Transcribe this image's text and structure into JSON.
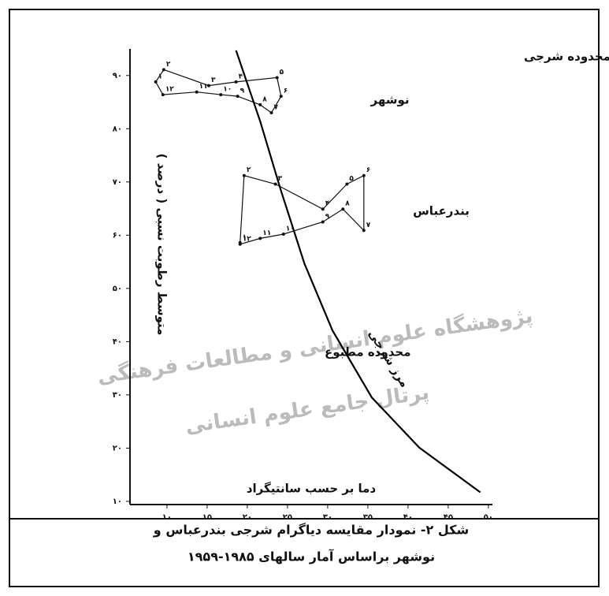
{
  "chart_data": {
    "type": "line",
    "xlim": [
      5.4,
      50.5
    ],
    "ylim": [
      9.4,
      95
    ],
    "xticks": [
      {
        "value": 10,
        "label": "۱۰"
      },
      {
        "value": 15,
        "label": "۱۵"
      },
      {
        "value": 20,
        "label": "۲۰"
      },
      {
        "value": 25,
        "label": "۲۵"
      },
      {
        "value": 30,
        "label": "۳۰"
      },
      {
        "value": 35,
        "label": "۳۵"
      },
      {
        "value": 40,
        "label": "۴۰"
      },
      {
        "value": 45,
        "label": "۴۵"
      },
      {
        "value": 50,
        "label": "۵۰"
      }
    ],
    "yticks": [
      {
        "value": 10,
        "label": "۱۰"
      },
      {
        "value": 20,
        "label": "۲۰"
      },
      {
        "value": 30,
        "label": "۳۰"
      },
      {
        "value": 40,
        "label": "۴۰"
      },
      {
        "value": 50,
        "label": "۵۰"
      },
      {
        "value": 60,
        "label": "۶۰"
      },
      {
        "value": 70,
        "label": "۷۰"
      },
      {
        "value": 80,
        "label": "۸۰"
      },
      {
        "value": 90,
        "label": "۹۰"
      }
    ],
    "x_label": "دما بر حسب سانتیگراد",
    "y_label": "متوسط رطوبت نسبی ( درصد )",
    "annotations": [
      "محدوده شرجی",
      "محدوده مطبوع"
    ],
    "caption": [
      "شکل ۲- نمودار مقایسه دیاگرام شرجی بندرعباس و",
      "نوشهر براساس آمار سالهای ۱۹۸۵-۱۹۵۹"
    ],
    "watermark": [
      "پژوهشگاه علوم انسانی و مطالعات فرهنگی",
      "پرتال جامع علوم انسانی"
    ],
    "series": [
      {
        "name": "نوشهر",
        "color": "#111111",
        "x": [
          8.6,
          9.6,
          15.2,
          18.6,
          23.7,
          24.2,
          23.0,
          21.6,
          18.8,
          16.7,
          13.7,
          9.5
        ],
        "values": [
          88.8,
          91.1,
          88.1,
          88.8,
          89.6,
          86.1,
          83.0,
          84.5,
          86.1,
          86.4,
          86.9,
          86.4
        ],
        "point_labels": [
          "۱",
          "۲",
          "۳",
          "۴",
          "۵",
          "۶",
          "۷",
          "۸",
          "۹",
          "۱۰",
          "۱۱",
          "۱۲"
        ]
      },
      {
        "name": "بندرعباس",
        "color": "#111111",
        "x": [
          19.1,
          19.6,
          23.5,
          29.4,
          32.4,
          34.5,
          34.5,
          31.9,
          29.4,
          24.5,
          21.6,
          19.1
        ],
        "values": [
          58.6,
          71.2,
          69.6,
          64.9,
          69.6,
          71.2,
          60.9,
          64.9,
          62.5,
          60.2,
          59.4,
          58.3
        ],
        "point_labels": [
          "۱",
          "۲",
          "۳",
          "۴",
          "۵",
          "۶",
          "۷",
          "۸",
          "۹",
          "۱۰",
          "۱۱",
          "۱۲"
        ]
      },
      {
        "name": "مرز شرجی",
        "color": "#000000",
        "x": [
          18.6,
          21.6,
          24.1,
          27.1,
          30.6,
          35.5,
          41.4,
          49.0
        ],
        "values": [
          94.7,
          81.4,
          68.8,
          54.7,
          42.1,
          29.5,
          20.1,
          11.7
        ]
      }
    ]
  }
}
